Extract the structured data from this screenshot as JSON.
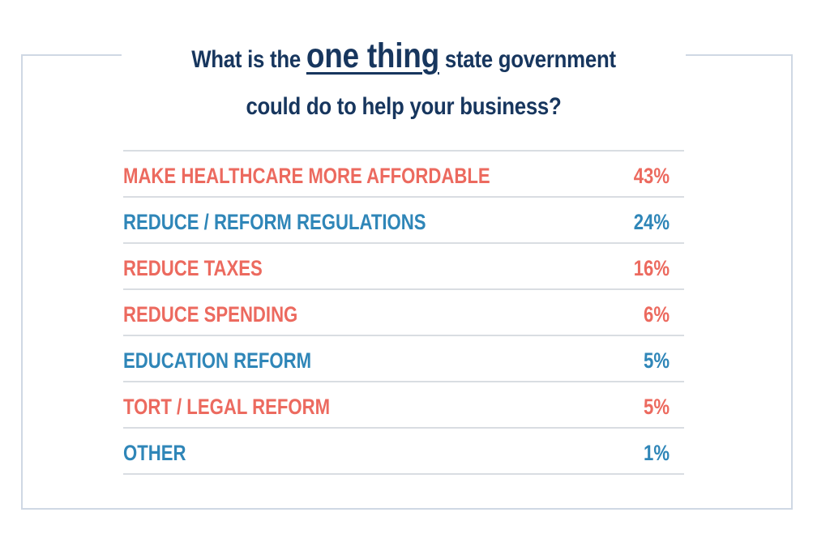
{
  "title": {
    "prefix": "What is the ",
    "emphasis": "one thing",
    "suffix": " state government",
    "line2": "could do to help your business?"
  },
  "colors": {
    "title": "#17365e",
    "coral": "#ec6a5f",
    "blue": "#2f86b8",
    "rule": "#d9dde2",
    "frame": "#cfd8e4"
  },
  "chart_data": {
    "type": "table",
    "rows": [
      {
        "label": "MAKE HEALTHCARE MORE AFFORDABLE",
        "value_text": "43%",
        "value": 43,
        "color": "#ec6a5f"
      },
      {
        "label": "REDUCE / REFORM REGULATIONS",
        "value_text": "24%",
        "value": 24,
        "color": "#2f86b8"
      },
      {
        "label": "REDUCE TAXES",
        "value_text": "16%",
        "value": 16,
        "color": "#ec6a5f"
      },
      {
        "label": "REDUCE SPENDING",
        "value_text": "6%",
        "value": 6,
        "color": "#ec6a5f"
      },
      {
        "label": "EDUCATION REFORM",
        "value_text": "5%",
        "value": 5,
        "color": "#2f86b8"
      },
      {
        "label": "TORT / LEGAL REFORM",
        "value_text": "5%",
        "value": 5,
        "color": "#ec6a5f"
      },
      {
        "label": "OTHER",
        "value_text": "1%",
        "value": 1,
        "color": "#2f86b8"
      }
    ]
  }
}
